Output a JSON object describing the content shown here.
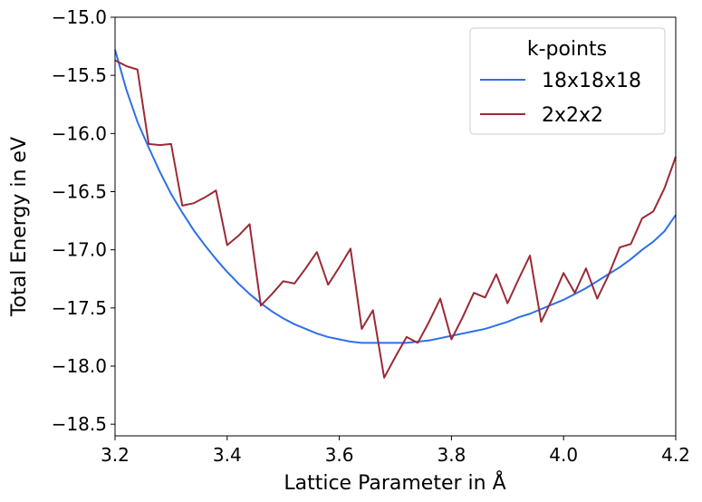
{
  "chart_data": {
    "type": "line",
    "xlabel": "Lattice Parameter in Å",
    "ylabel": "Total Energy in eV",
    "xlim": [
      3.2,
      4.2
    ],
    "ylim": [
      -18.6,
      -15.0
    ],
    "xticks": [
      "3.2",
      "3.4",
      "3.6",
      "3.8",
      "4.0",
      "4.2"
    ],
    "yticks": [
      "−15.0",
      "−15.5",
      "−16.0",
      "−16.5",
      "−17.0",
      "−17.5",
      "−18.0",
      "−18.5"
    ],
    "xtick_values": [
      3.2,
      3.4,
      3.6,
      3.8,
      4.0,
      4.2
    ],
    "ytick_values": [
      -15.0,
      -15.5,
      -16.0,
      -16.5,
      -17.0,
      -17.5,
      -18.0,
      -18.5
    ],
    "grid": false,
    "legend": {
      "title": "k-points",
      "placement": "top-right"
    },
    "series": [
      {
        "name": "18x18x18",
        "color": "#2f6fe8",
        "x": [
          3.2,
          3.22,
          3.24,
          3.26,
          3.28,
          3.3,
          3.32,
          3.34,
          3.36,
          3.38,
          3.4,
          3.42,
          3.44,
          3.46,
          3.48,
          3.5,
          3.52,
          3.54,
          3.56,
          3.58,
          3.6,
          3.62,
          3.64,
          3.66,
          3.68,
          3.7,
          3.72,
          3.74,
          3.76,
          3.78,
          3.8,
          3.82,
          3.84,
          3.86,
          3.88,
          3.9,
          3.92,
          3.94,
          3.96,
          3.98,
          4.0,
          4.02,
          4.04,
          4.06,
          4.08,
          4.1,
          4.12,
          4.14,
          4.16,
          4.18,
          4.2
        ],
        "y": [
          -15.28,
          -15.62,
          -15.9,
          -16.12,
          -16.33,
          -16.52,
          -16.68,
          -16.83,
          -16.96,
          -17.08,
          -17.19,
          -17.29,
          -17.38,
          -17.46,
          -17.53,
          -17.59,
          -17.64,
          -17.68,
          -17.72,
          -17.75,
          -17.77,
          -17.79,
          -17.8,
          -17.8,
          -17.8,
          -17.8,
          -17.8,
          -17.79,
          -17.78,
          -17.76,
          -17.74,
          -17.72,
          -17.7,
          -17.68,
          -17.65,
          -17.62,
          -17.58,
          -17.55,
          -17.51,
          -17.47,
          -17.43,
          -17.38,
          -17.33,
          -17.27,
          -17.21,
          -17.15,
          -17.08,
          -17.0,
          -16.93,
          -16.84,
          -16.7
        ]
      },
      {
        "name": "2x2x2",
        "color": "#9b2a35",
        "x": [
          3.2,
          3.22,
          3.24,
          3.26,
          3.28,
          3.3,
          3.32,
          3.34,
          3.36,
          3.38,
          3.4,
          3.42,
          3.44,
          3.46,
          3.48,
          3.5,
          3.52,
          3.54,
          3.56,
          3.58,
          3.6,
          3.62,
          3.64,
          3.66,
          3.68,
          3.7,
          3.72,
          3.74,
          3.76,
          3.78,
          3.8,
          3.82,
          3.84,
          3.86,
          3.88,
          3.9,
          3.92,
          3.94,
          3.96,
          3.98,
          4.0,
          4.02,
          4.04,
          4.06,
          4.08,
          4.1,
          4.12,
          4.14,
          4.16,
          4.18,
          4.2
        ],
        "y": [
          -15.37,
          -15.42,
          -15.45,
          -16.09,
          -16.1,
          -16.09,
          -16.62,
          -16.6,
          -16.55,
          -16.49,
          -16.96,
          -16.88,
          -16.78,
          -17.48,
          -17.38,
          -17.27,
          -17.29,
          -17.16,
          -17.02,
          -17.3,
          -17.15,
          -16.99,
          -17.68,
          -17.52,
          -18.1,
          -17.92,
          -17.75,
          -17.8,
          -17.62,
          -17.42,
          -17.77,
          -17.58,
          -17.37,
          -17.41,
          -17.21,
          -17.46,
          -17.25,
          -17.05,
          -17.62,
          -17.42,
          -17.2,
          -17.37,
          -17.16,
          -17.42,
          -17.22,
          -16.98,
          -16.95,
          -16.73,
          -16.67,
          -16.47,
          -16.2
        ]
      }
    ]
  }
}
